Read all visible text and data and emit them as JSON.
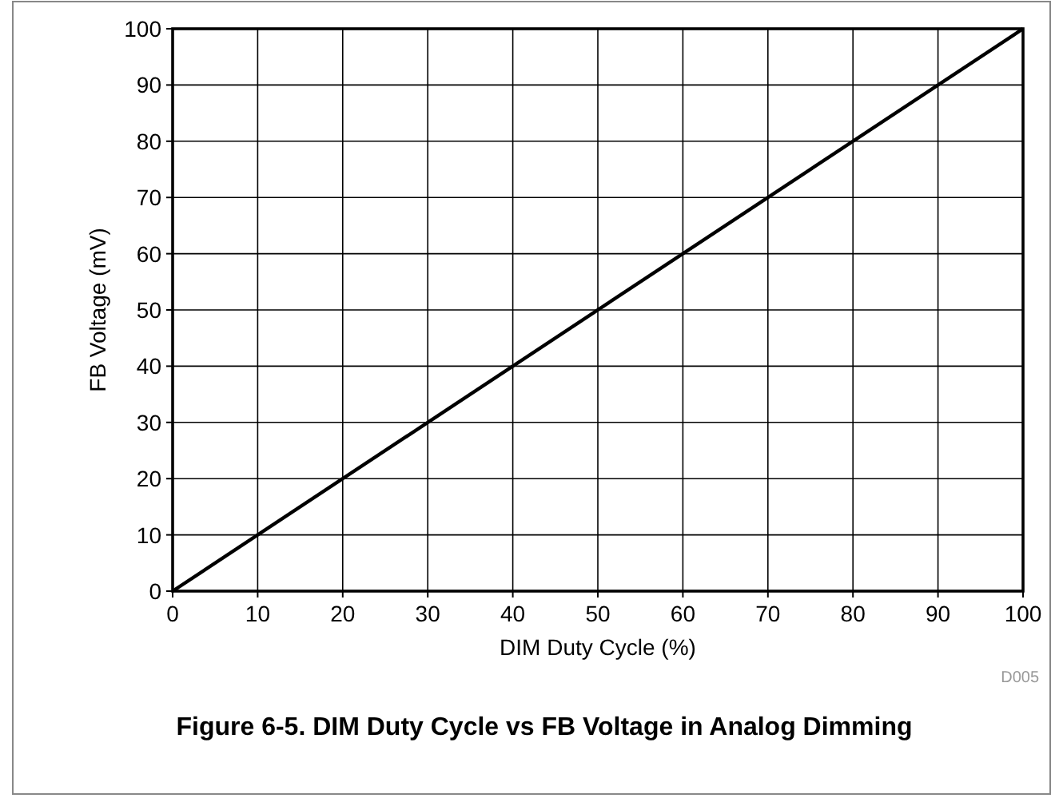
{
  "chart_data": {
    "type": "line",
    "title": "Figure 6-5. DIM Duty Cycle vs FB Voltage in Analog Dimming",
    "xlabel": "DIM Duty Cycle (%)",
    "ylabel": "FB Voltage (mV)",
    "annotations": [
      "D005"
    ],
    "x": [
      0,
      100
    ],
    "series": [
      {
        "color": "#000000",
        "values": [
          0,
          100
        ]
      }
    ],
    "xlim": [
      0,
      100
    ],
    "ylim": [
      0,
      100
    ],
    "xticks": [
      0,
      10,
      20,
      30,
      40,
      50,
      60,
      70,
      80,
      90,
      100
    ],
    "yticks": [
      0,
      10,
      20,
      30,
      40,
      50,
      60,
      70,
      80,
      90,
      100
    ],
    "grid": true,
    "marker": "none",
    "line_style": "solid"
  }
}
